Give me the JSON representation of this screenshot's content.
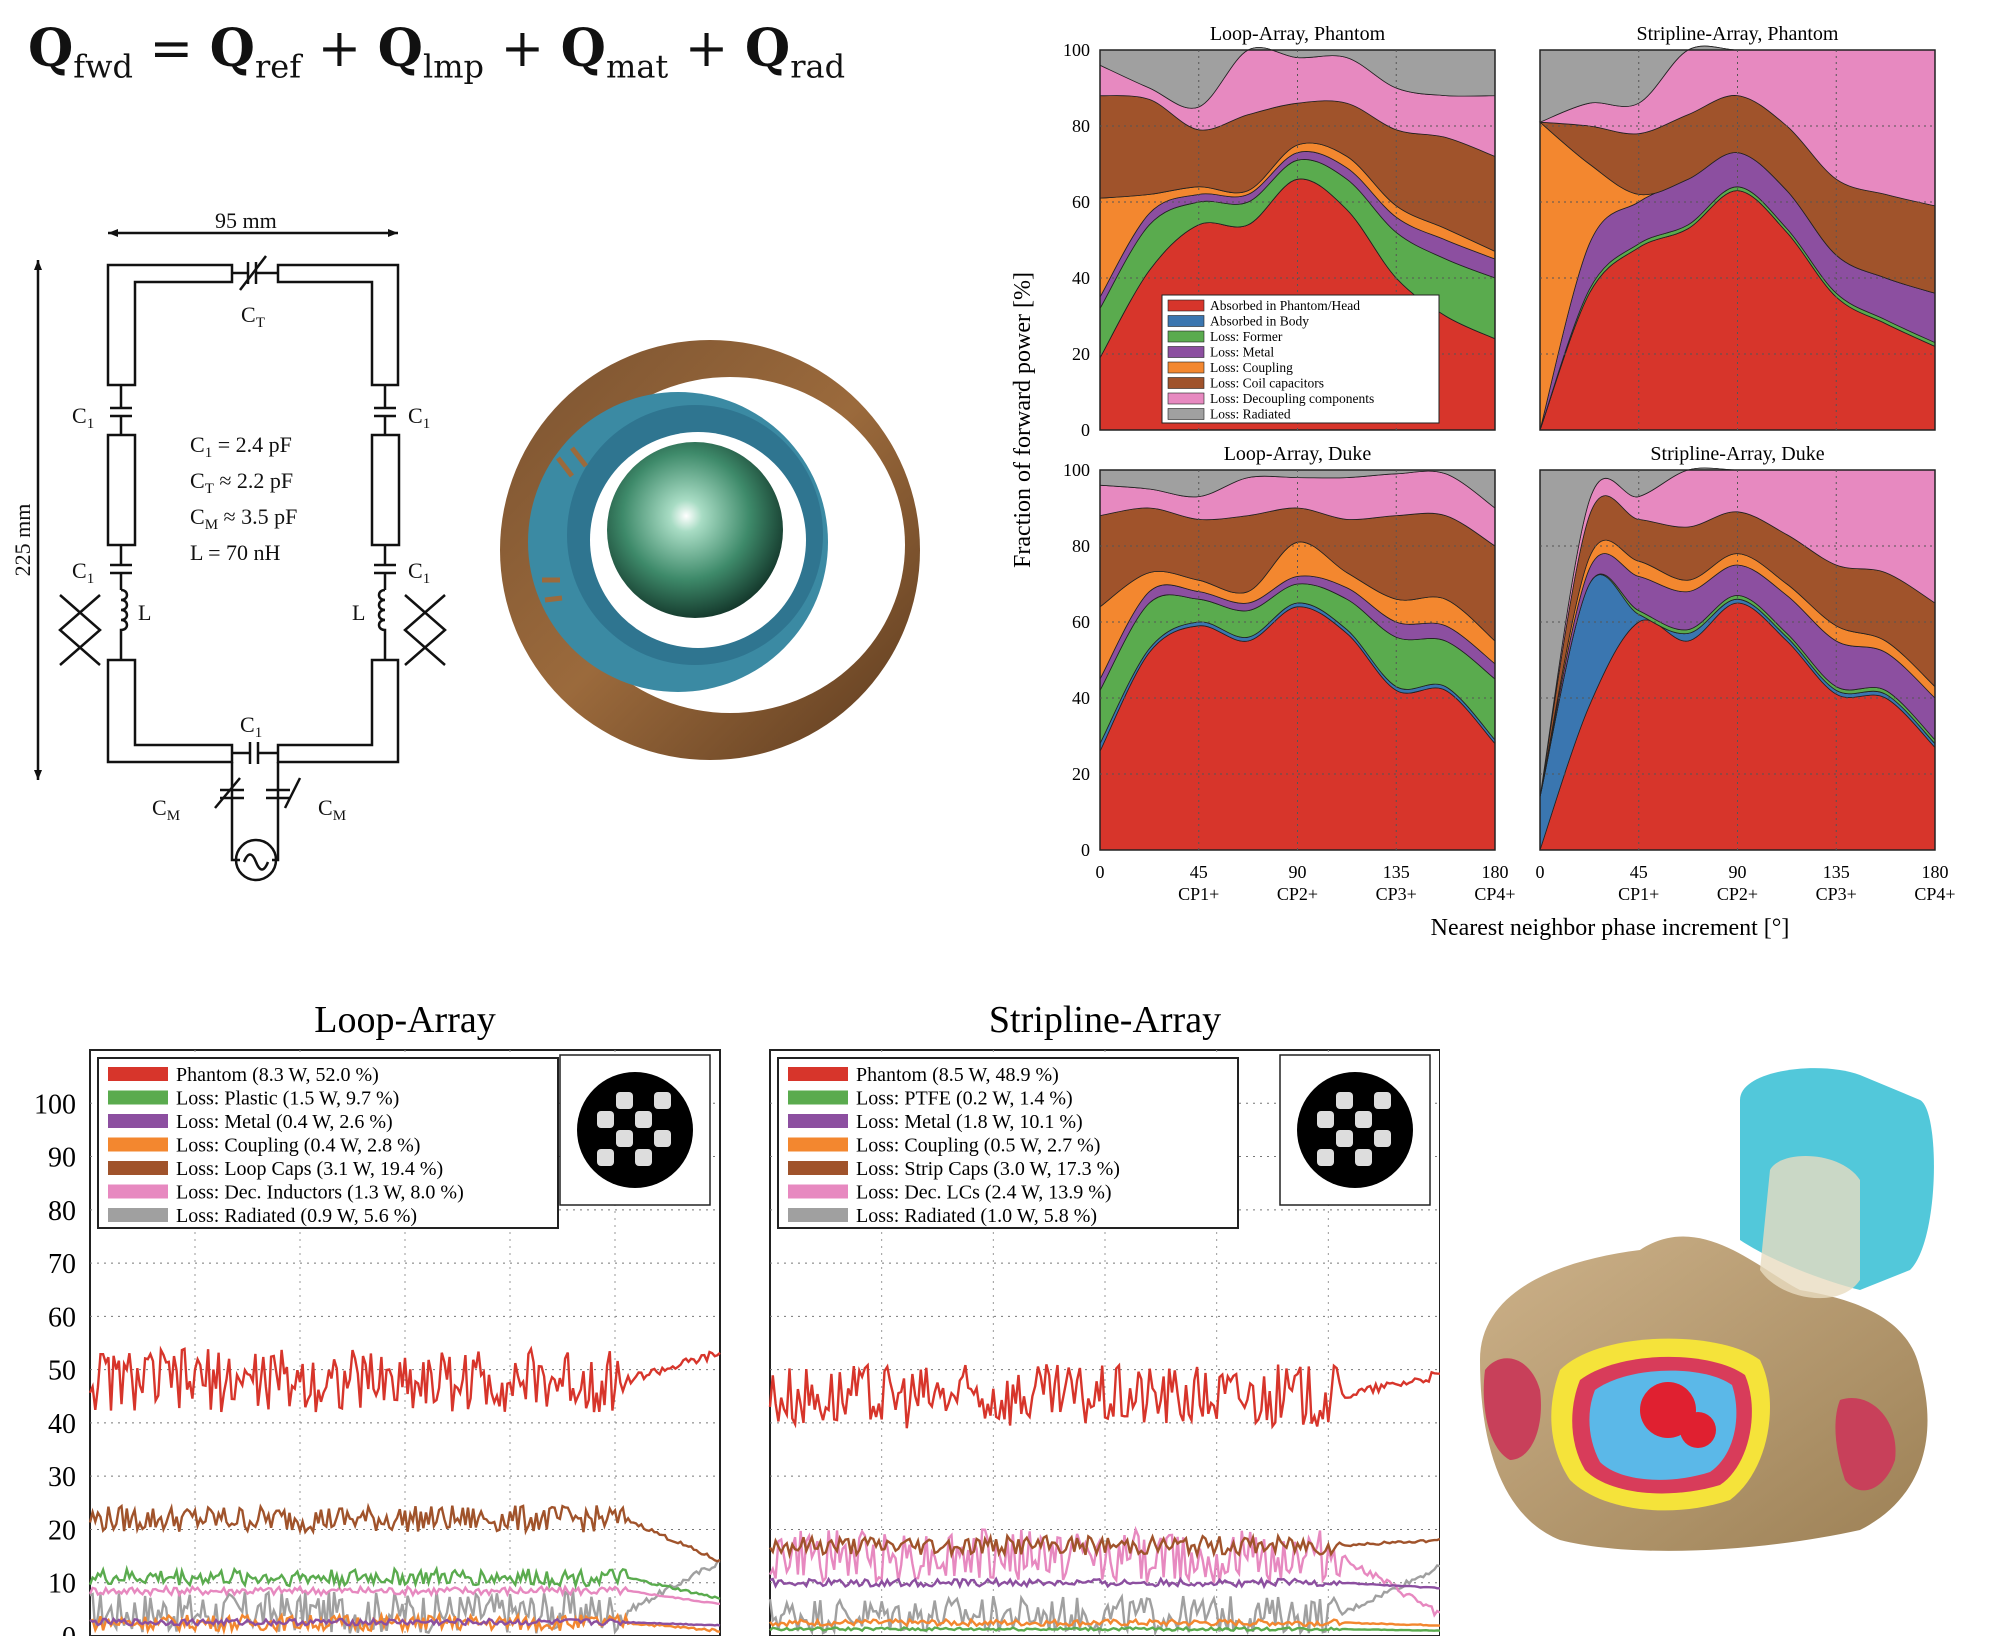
{
  "equation": {
    "lhs": "Q",
    "lhs_sub": "fwd",
    "terms": [
      {
        "sym": "Q",
        "sub": "ref"
      },
      {
        "sym": "Q",
        "sub": "lmp"
      },
      {
        "sym": "Q",
        "sub": "mat"
      },
      {
        "sym": "Q",
        "sub": "rad"
      }
    ],
    "eq": "=",
    "plus": "+"
  },
  "circuit": {
    "width_label": "95 mm",
    "height_label": "225 mm",
    "ct_label": "C",
    "ct_sub": "T",
    "c1_label": "C",
    "c1_sub": "1",
    "cm_label": "C",
    "cm_sub": "M",
    "l_label": "L",
    "values": [
      {
        "sym": "C",
        "sub": "1",
        "rel": " = 2.4 pF"
      },
      {
        "sym": "C",
        "sub": "T",
        "rel": " ≈ 2.2 pF"
      },
      {
        "sym": "C",
        "sub": "M",
        "rel": " ≈ 3.5 pF"
      },
      {
        "sym": "L",
        "sub": "",
        "rel": " = 70 nH"
      }
    ]
  },
  "colors": {
    "phantom": "#d7352b",
    "body": "#3a76b0",
    "former": "#5aab4e",
    "metal": "#8c4fa0",
    "coupling": "#f3872f",
    "capacitors": "#a0532b",
    "decoupling": "#e789c0",
    "radiated": "#a0a0a0"
  },
  "chart_data": [
    {
      "type": "area",
      "title": "Loop-Array, Phantom",
      "ylabel": "Fraction of forward power [%]",
      "xlabel": "Nearest neighbor phase increment [°]",
      "x": [
        0,
        22.5,
        45,
        67.5,
        90,
        112.5,
        135,
        157.5,
        180
      ],
      "xticks": [
        0,
        45,
        90,
        135,
        180
      ],
      "xtick_sub": [
        "",
        "CP1+",
        "CP2+",
        "CP3+",
        "CP4+"
      ],
      "ylim": [
        0,
        100
      ],
      "yticks": [
        0,
        20,
        40,
        60,
        80,
        100
      ],
      "legend": [
        "Absorbed in Phantom/Head",
        "Absorbed in Body",
        "Loss: Former",
        "Loss: Metal",
        "Loss: Coupling",
        "Loss: Coil capacitors",
        "Loss: Decoupling components",
        "Loss: Radiated"
      ],
      "series": [
        {
          "name": "Absorbed in Phantom/Head",
          "values": [
            19,
            42,
            54,
            54,
            66,
            58,
            40,
            30,
            24
          ]
        },
        {
          "name": "Absorbed in Body",
          "values": [
            0,
            0,
            0,
            0,
            0,
            0,
            0,
            0,
            0
          ]
        },
        {
          "name": "Loss: Former",
          "values": [
            13,
            12,
            6,
            6,
            5,
            8,
            12,
            15,
            16
          ]
        },
        {
          "name": "Loss: Metal",
          "values": [
            3,
            3,
            2,
            2,
            2,
            3,
            4,
            5,
            5
          ]
        },
        {
          "name": "Loss: Coupling",
          "values": [
            26,
            5,
            2,
            1,
            2,
            3,
            3,
            3,
            2
          ]
        },
        {
          "name": "Loss: Coil capacitors",
          "values": [
            27,
            25,
            15,
            20,
            11,
            14,
            20,
            24,
            25
          ]
        },
        {
          "name": "Loss: Decoupling components",
          "values": [
            8,
            3,
            6,
            17,
            12,
            12,
            11,
            11,
            16
          ]
        },
        {
          "name": "Loss: Radiated",
          "values": [
            4,
            10,
            15,
            0,
            2,
            2,
            10,
            12,
            12
          ]
        }
      ]
    },
    {
      "type": "area",
      "title": "Stripline-Array, Phantom",
      "x": [
        0,
        22.5,
        45,
        67.5,
        90,
        112.5,
        135,
        157.5,
        180
      ],
      "xticks": [
        0,
        45,
        90,
        135,
        180
      ],
      "xtick_sub": [
        "",
        "CP1+",
        "CP2+",
        "CP3+",
        "CP4+"
      ],
      "ylim": [
        0,
        100
      ],
      "series": [
        {
          "name": "Absorbed in Phantom/Head",
          "values": [
            0,
            36,
            48,
            53,
            63,
            52,
            35,
            28,
            22
          ]
        },
        {
          "name": "Absorbed in Body",
          "values": [
            0,
            0,
            0,
            0,
            0,
            0,
            0,
            0,
            0
          ]
        },
        {
          "name": "Loss: Former",
          "values": [
            0,
            1,
            1,
            1,
            1,
            1,
            1,
            1,
            1
          ]
        },
        {
          "name": "Loss: Metal",
          "values": [
            0,
            12,
            11,
            12,
            9,
            10,
            10,
            11,
            13
          ]
        },
        {
          "name": "Loss: Coupling",
          "values": [
            81,
            21,
            2,
            0,
            0,
            0,
            0,
            0,
            0
          ]
        },
        {
          "name": "Loss: Coil capacitors",
          "values": [
            0,
            10,
            16,
            17,
            15,
            17,
            20,
            22,
            23
          ]
        },
        {
          "name": "Loss: Decoupling components",
          "values": [
            0,
            6,
            8,
            17,
            12,
            20,
            34,
            38,
            41
          ]
        },
        {
          "name": "Loss: Radiated",
          "values": [
            19,
            14,
            14,
            0,
            0,
            0,
            0,
            0,
            0
          ]
        }
      ]
    },
    {
      "type": "area",
      "title": "Loop-Array, Duke",
      "x": [
        0,
        22.5,
        45,
        67.5,
        90,
        112.5,
        135,
        157.5,
        180
      ],
      "xticks": [
        0,
        45,
        90,
        135,
        180
      ],
      "xtick_sub": [
        "",
        "CP1+",
        "CP2+",
        "CP3+",
        "CP4+"
      ],
      "ylim": [
        0,
        100
      ],
      "series": [
        {
          "name": "Absorbed in Phantom/Head",
          "values": [
            26,
            52,
            59,
            55,
            64,
            57,
            42,
            42,
            28
          ]
        },
        {
          "name": "Absorbed in Body",
          "values": [
            2,
            1,
            1,
            1,
            1,
            1,
            1,
            1,
            1
          ]
        },
        {
          "name": "Loss: Former",
          "values": [
            14,
            12,
            6,
            7,
            5,
            8,
            13,
            12,
            16
          ]
        },
        {
          "name": "Loss: Metal",
          "values": [
            3,
            3,
            2,
            2,
            2,
            3,
            4,
            4,
            4
          ]
        },
        {
          "name": "Loss: Coupling",
          "values": [
            19,
            5,
            3,
            3,
            9,
            4,
            6,
            7,
            6
          ]
        },
        {
          "name": "Loss: Coil capacitors",
          "values": [
            24,
            17,
            16,
            20,
            9,
            14,
            22,
            22,
            25
          ]
        },
        {
          "name": "Loss: Decoupling components",
          "values": [
            8,
            5,
            6,
            10,
            8,
            11,
            11,
            11,
            10
          ]
        },
        {
          "name": "Loss: Radiated",
          "values": [
            4,
            5,
            7,
            2,
            2,
            2,
            1,
            1,
            10
          ]
        }
      ]
    },
    {
      "type": "area",
      "title": "Stripline-Array, Duke",
      "x": [
        0,
        22.5,
        45,
        67.5,
        90,
        112.5,
        135,
        157.5,
        180
      ],
      "xticks": [
        0,
        45,
        90,
        135,
        180
      ],
      "xtick_sub": [
        "",
        "CP1+",
        "CP2+",
        "CP3+",
        "CP4+"
      ],
      "ylim": [
        0,
        100
      ],
      "series": [
        {
          "name": "Absorbed in Phantom/Head",
          "values": [
            0,
            38,
            60,
            55,
            65,
            55,
            41,
            40,
            27
          ]
        },
        {
          "name": "Absorbed in Body",
          "values": [
            14,
            32,
            2,
            2,
            1,
            1,
            1,
            1,
            1
          ]
        },
        {
          "name": "Loss: Former",
          "values": [
            0,
            0,
            1,
            1,
            1,
            1,
            1,
            1,
            1
          ]
        },
        {
          "name": "Loss: Metal",
          "values": [
            0,
            4,
            9,
            10,
            8,
            10,
            12,
            10,
            11
          ]
        },
        {
          "name": "Loss: Coupling",
          "values": [
            0,
            3,
            4,
            3,
            3,
            3,
            4,
            3,
            3
          ]
        },
        {
          "name": "Loss: Coil capacitors",
          "values": [
            0,
            11,
            11,
            14,
            11,
            13,
            16,
            18,
            22
          ]
        },
        {
          "name": "Loss: Decoupling components",
          "values": [
            0,
            4,
            6,
            15,
            12,
            17,
            25,
            27,
            35
          ]
        },
        {
          "name": "Loss: Radiated",
          "values": [
            86,
            8,
            7,
            0,
            0,
            0,
            0,
            0,
            0
          ]
        }
      ]
    },
    {
      "type": "line",
      "title": "Loop-Array",
      "ylim": [
        0,
        110
      ],
      "yticks": [
        0,
        10,
        20,
        30,
        40,
        50,
        60,
        70,
        80,
        90,
        100
      ],
      "grid": true,
      "legend_position": "top-left",
      "series": [
        {
          "name": "Phantom (8.3 W, 52.0 %)",
          "color": "#d7352b",
          "mean": 48,
          "spread": 6,
          "end": 53
        },
        {
          "name": "Loss: Plastic (1.5 W, 9.7 %)",
          "color": "#5aab4e",
          "mean": 11,
          "spread": 1.6,
          "end": 7
        },
        {
          "name": "Loss: Metal (0.4 W, 2.6 %)",
          "color": "#8c4fa0",
          "mean": 2.6,
          "spread": 0.6,
          "end": 2
        },
        {
          "name": "Loss: Coupling (0.4 W, 2.8 %)",
          "color": "#f3872f",
          "mean": 2.5,
          "spread": 1.5,
          "end": 1
        },
        {
          "name": "Loss: Loop Caps (3.1 W, 19.4 %)",
          "color": "#a0532b",
          "mean": 22,
          "spread": 2.5,
          "end": 14
        },
        {
          "name": "Loss: Dec. Inductors (1.3 W, 8.0 %)",
          "color": "#e789c0",
          "mean": 8.5,
          "spread": 0.8,
          "end": 6
        },
        {
          "name": "Loss: Radiated (0.9 W, 5.6 %)",
          "color": "#a0a0a0",
          "mean": 4.5,
          "spread": 4,
          "end": 14
        }
      ]
    },
    {
      "type": "line",
      "title": "Stripline-Array",
      "ylim": [
        0,
        110
      ],
      "grid": true,
      "legend_position": "top-left",
      "series": [
        {
          "name": "Phantom (8.5 W, 48.9 %)",
          "color": "#d7352b",
          "mean": 45,
          "spread": 6,
          "end": 49
        },
        {
          "name": "Loss: PTFE (0.2 W, 1.4 %)",
          "color": "#5aab4e",
          "mean": 1.3,
          "spread": 0.3,
          "end": 1
        },
        {
          "name": "Loss: Metal (1.8 W, 10.1 %)",
          "color": "#8c4fa0",
          "mean": 10,
          "spread": 0.7,
          "end": 9
        },
        {
          "name": "Loss: Coupling (0.5 W, 2.7 %)",
          "color": "#f3872f",
          "mean": 2.5,
          "spread": 0.6,
          "end": 2
        },
        {
          "name": "Loss: Strip Caps (3.0 W, 17.3 %)",
          "color": "#a0532b",
          "mean": 17,
          "spread": 1.8,
          "end": 18
        },
        {
          "name": "Loss: Dec. LCs (2.4 W, 13.9 %)",
          "color": "#e789c0",
          "mean": 15,
          "spread": 5,
          "end": 4
        },
        {
          "name": "Loss: Radiated (1.0 W, 5.8 %)",
          "color": "#a0a0a0",
          "mean": 4,
          "spread": 3.5,
          "end": 13
        }
      ]
    }
  ]
}
